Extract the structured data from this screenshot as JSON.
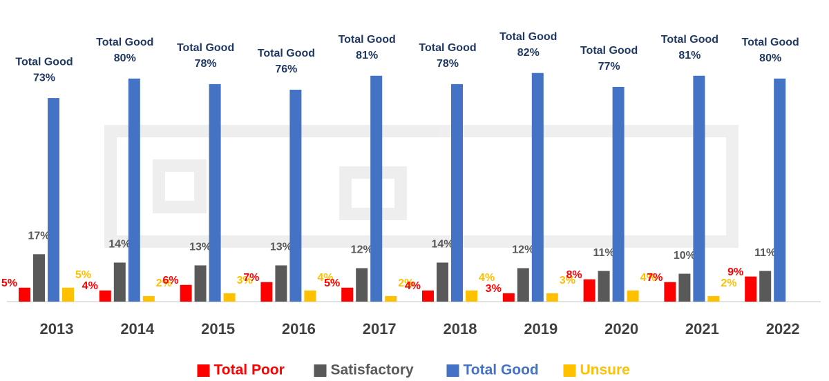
{
  "chart_data": {
    "type": "bar",
    "categories": [
      "2013",
      "2014",
      "2015",
      "2016",
      "2017",
      "2018",
      "2019",
      "2020",
      "2021",
      "2022"
    ],
    "series": [
      {
        "name": "Total Poor",
        "color": "#ff0000",
        "label_color": "#ff0000",
        "values": [
          5,
          4,
          6,
          7,
          5,
          4,
          3,
          8,
          7,
          9
        ],
        "value_labels": [
          "5%",
          "4%",
          "6%",
          "7%",
          "5%",
          "4%",
          "3%",
          "8%",
          "7%",
          "9%"
        ]
      },
      {
        "name": "Satisfactory",
        "color": "#595959",
        "label_color": "#595959",
        "values": [
          17,
          14,
          13,
          13,
          12,
          14,
          12,
          11,
          10,
          11
        ],
        "value_labels": [
          "17%",
          "14%",
          "13%",
          "13%",
          "12%",
          "14%",
          "12%",
          "11%",
          "10%",
          "11%"
        ]
      },
      {
        "name": "Total Good",
        "color": "#4472c4",
        "label_color": "#1f3864",
        "values": [
          73,
          80,
          78,
          76,
          81,
          78,
          82,
          77,
          81,
          80
        ],
        "value_labels": [
          "73%",
          "80%",
          "78%",
          "76%",
          "81%",
          "78%",
          "82%",
          "77%",
          "81%",
          "80%"
        ]
      },
      {
        "name": "Unsure",
        "color": "#ffc000",
        "label_color": "#ffc000",
        "values": [
          5,
          2,
          3,
          4,
          2,
          4,
          3,
          4,
          2,
          0
        ],
        "value_labels": [
          "5%",
          "2%",
          "3%",
          "4%",
          "2%",
          "4%",
          "3%",
          "4%",
          "2%",
          null
        ]
      }
    ],
    "ylim": [
      0,
      100
    ],
    "legend": "bottom"
  }
}
